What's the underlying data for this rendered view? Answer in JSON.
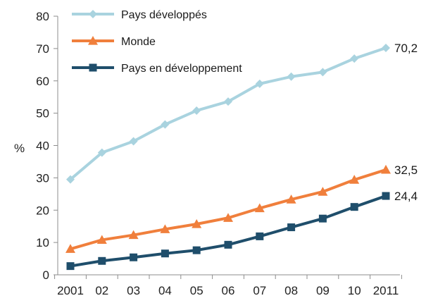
{
  "chart_data": {
    "type": "line",
    "x": [
      "2001",
      "02",
      "03",
      "04",
      "05",
      "06",
      "07",
      "08",
      "09",
      "10",
      "2011"
    ],
    "series": [
      {
        "name": "Pays développés",
        "values": [
          29.5,
          37.8,
          41.3,
          46.5,
          50.8,
          53.6,
          59.1,
          61.3,
          62.7,
          66.9,
          70.2
        ],
        "color": "#a9d3df",
        "marker": "diamond",
        "end_label": "70,2"
      },
      {
        "name": "Monde",
        "values": [
          8.0,
          10.8,
          12.3,
          14.1,
          15.7,
          17.6,
          20.6,
          23.3,
          25.7,
          29.4,
          32.5
        ],
        "color": "#f07f3c",
        "marker": "triangle",
        "end_label": "32,5"
      },
      {
        "name": "Pays en développement",
        "values": [
          2.7,
          4.3,
          5.4,
          6.6,
          7.6,
          9.3,
          11.9,
          14.7,
          17.4,
          21.0,
          24.4
        ],
        "color": "#1f4e6b",
        "marker": "square",
        "end_label": "24,4"
      }
    ],
    "ylabel": "%",
    "ylim": [
      0,
      80
    ],
    "yticks": [
      "0",
      "10",
      "20",
      "30",
      "40",
      "50",
      "60",
      "70",
      "80"
    ],
    "grid": false,
    "legend_position": "top-left"
  }
}
